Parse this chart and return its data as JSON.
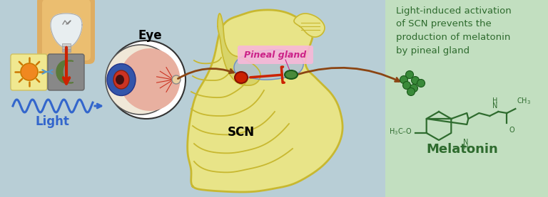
{
  "bg_left": "#b8ced6",
  "bg_right": "#c2dfc0",
  "title_text": "Light-induced activation\nof SCN prevents the\nproduction of melatonin\nby pineal gland",
  "title_color": "#2e6b2e",
  "label_light": "Light",
  "label_eye": "Eye",
  "label_scn": "SCN",
  "label_pineal": "Pineal gland",
  "label_melatonin": "Melatonin",
  "light_wave_color": "#3366cc",
  "arrow_red_color": "#cc2200",
  "arrow_brown_color": "#8b4513",
  "pineal_label_bg": "#f8b8d8",
  "brain_fill": "#e8e488",
  "brain_outline": "#c8b830",
  "brain_inner": "#d8d070",
  "scn_color": "#cc2200",
  "pineal_color": "#4a8a3a",
  "bulb_orange": "#f0a030",
  "bulb_glass": "#e8f4ff",
  "sun_color": "#f08820",
  "sun_bg": "#f0e890",
  "moon_bg": "#909090",
  "moon_color": "#5a7a3a",
  "melatonin_color": "#2e6b2e",
  "dot_color": "#3a8a3a",
  "figsize": [
    7.68,
    2.77
  ],
  "dpi": 100
}
